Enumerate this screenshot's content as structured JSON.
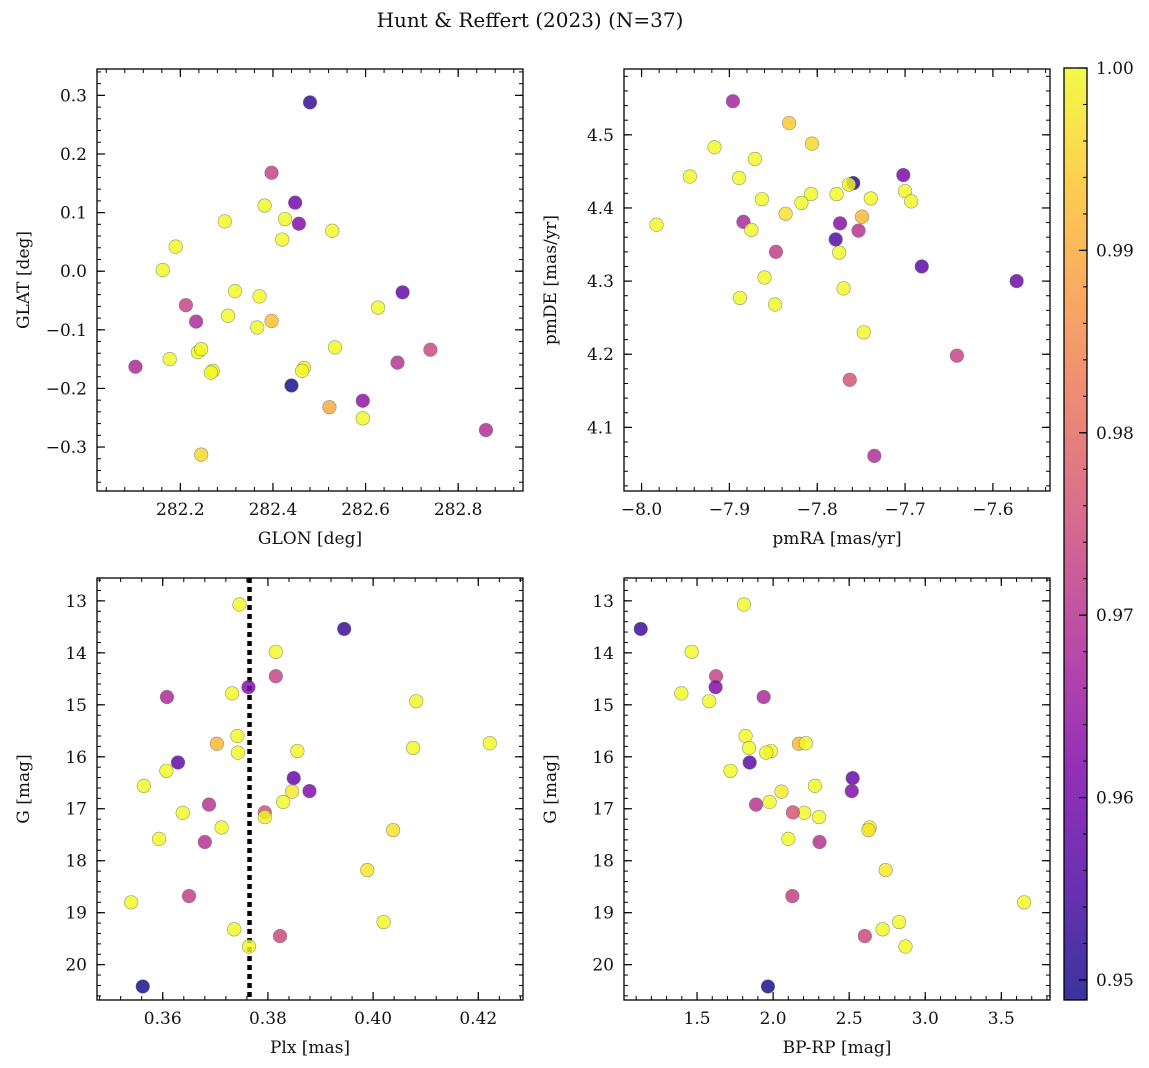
{
  "figure_title": "Hunt & Reffert (2023) (N=37)",
  "colorbar": {
    "min": 0.9489,
    "max": 1.0,
    "colormap": "plasma",
    "ticks": [
      0.95,
      0.96,
      0.97,
      0.98,
      0.99,
      1.0
    ],
    "tick_labels": [
      "0.95",
      "0.96",
      "0.97",
      "0.98",
      "0.99",
      "1.00"
    ]
  },
  "chart_data": [
    {
      "type": "scatter",
      "xlabel": "GLON [deg]",
      "ylabel": "GLAT [deg]",
      "xlim": [
        282.02,
        282.94
      ],
      "ylim": [
        -0.375,
        0.345
      ],
      "y_inverted": false,
      "xticks": [
        282.2,
        282.4,
        282.6,
        282.8
      ],
      "xtick_labels": [
        "282.2",
        "282.4",
        "282.6",
        "282.8"
      ],
      "yticks": [
        0.3,
        0.2,
        0.1,
        0.0,
        -0.1,
        -0.2,
        -0.3
      ],
      "ytick_labels": [
        "0.3",
        "0.2",
        "0.1",
        "0.0",
        "−0.1",
        "−0.2",
        "−0.3"
      ],
      "points": [
        {
          "x": 282.48,
          "y": 0.288,
          "c": 0.952
        },
        {
          "x": 282.397,
          "y": 0.168,
          "c": 0.973
        },
        {
          "x": 282.448,
          "y": 0.117,
          "c": 0.96
        },
        {
          "x": 282.382,
          "y": 0.112,
          "c": 1.0
        },
        {
          "x": 282.296,
          "y": 0.085,
          "c": 1.0
        },
        {
          "x": 282.426,
          "y": 0.089,
          "c": 1.0
        },
        {
          "x": 282.456,
          "y": 0.081,
          "c": 0.962
        },
        {
          "x": 282.528,
          "y": 0.069,
          "c": 1.0
        },
        {
          "x": 282.42,
          "y": 0.054,
          "c": 1.0
        },
        {
          "x": 282.19,
          "y": 0.042,
          "c": 1.0
        },
        {
          "x": 282.162,
          "y": 0.002,
          "c": 1.0
        },
        {
          "x": 282.318,
          "y": -0.034,
          "c": 1.0
        },
        {
          "x": 282.371,
          "y": -0.043,
          "c": 1.0
        },
        {
          "x": 282.68,
          "y": -0.036,
          "c": 0.958
        },
        {
          "x": 282.212,
          "y": -0.058,
          "c": 0.973
        },
        {
          "x": 282.627,
          "y": -0.062,
          "c": 1.0
        },
        {
          "x": 282.303,
          "y": -0.076,
          "c": 1.0
        },
        {
          "x": 282.397,
          "y": -0.085,
          "c": 0.993
        },
        {
          "x": 282.234,
          "y": -0.086,
          "c": 0.968
        },
        {
          "x": 282.366,
          "y": -0.096,
          "c": 1.0
        },
        {
          "x": 282.534,
          "y": -0.13,
          "c": 1.0
        },
        {
          "x": 282.238,
          "y": -0.138,
          "c": 1.0
        },
        {
          "x": 282.245,
          "y": -0.133,
          "c": 1.0
        },
        {
          "x": 282.74,
          "y": -0.134,
          "c": 0.974
        },
        {
          "x": 282.177,
          "y": -0.15,
          "c": 1.0
        },
        {
          "x": 282.669,
          "y": -0.156,
          "c": 0.97
        },
        {
          "x": 282.103,
          "y": -0.163,
          "c": 0.968
        },
        {
          "x": 282.467,
          "y": -0.165,
          "c": 1.0
        },
        {
          "x": 282.463,
          "y": -0.17,
          "c": 1.0
        },
        {
          "x": 282.27,
          "y": -0.17,
          "c": 1.0
        },
        {
          "x": 282.266,
          "y": -0.173,
          "c": 1.0
        },
        {
          "x": 282.44,
          "y": -0.195,
          "c": 0.9492
        },
        {
          "x": 282.594,
          "y": -0.221,
          "c": 0.964
        },
        {
          "x": 282.522,
          "y": -0.232,
          "c": 0.99
        },
        {
          "x": 282.594,
          "y": -0.251,
          "c": 1.0
        },
        {
          "x": 282.86,
          "y": -0.271,
          "c": 0.969
        },
        {
          "x": 282.245,
          "y": -0.313,
          "c": 0.996
        }
      ]
    },
    {
      "type": "scatter",
      "xlabel": "pmRA [mas/yr]",
      "ylabel": "pmDE [mas/yr]",
      "xlim": [
        -8.02,
        -7.535
      ],
      "ylim": [
        4.013,
        4.59
      ],
      "y_inverted": false,
      "xticks": [
        -8.0,
        -7.9,
        -7.8,
        -7.7,
        -7.6
      ],
      "xtick_labels": [
        "−8.0",
        "−7.9",
        "−7.8",
        "−7.7",
        "−7.6"
      ],
      "yticks": [
        4.1,
        4.2,
        4.3,
        4.4,
        4.5
      ],
      "ytick_labels": [
        "4.1",
        "4.2",
        "4.3",
        "4.4",
        "4.5"
      ],
      "points": [
        {
          "x": -7.896,
          "y": 4.546,
          "c": 0.967
        },
        {
          "x": -7.832,
          "y": 4.516,
          "c": 0.994
        },
        {
          "x": -7.806,
          "y": 4.488,
          "c": 0.996
        },
        {
          "x": -7.917,
          "y": 4.483,
          "c": 1.0
        },
        {
          "x": -7.871,
          "y": 4.467,
          "c": 1.0
        },
        {
          "x": -7.945,
          "y": 4.443,
          "c": 1.0
        },
        {
          "x": -7.889,
          "y": 4.441,
          "c": 1.0
        },
        {
          "x": -7.702,
          "y": 4.445,
          "c": 0.961
        },
        {
          "x": -7.759,
          "y": 4.434,
          "c": 0.951
        },
        {
          "x": -7.764,
          "y": 4.432,
          "c": 1.0
        },
        {
          "x": -7.7,
          "y": 4.423,
          "c": 1.0
        },
        {
          "x": -7.807,
          "y": 4.419,
          "c": 1.0
        },
        {
          "x": -7.778,
          "y": 4.419,
          "c": 1.0
        },
        {
          "x": -7.739,
          "y": 4.413,
          "c": 1.0
        },
        {
          "x": -7.863,
          "y": 4.412,
          "c": 1.0
        },
        {
          "x": -7.693,
          "y": 4.409,
          "c": 1.0
        },
        {
          "x": -7.818,
          "y": 4.407,
          "c": 1.0
        },
        {
          "x": -7.836,
          "y": 4.392,
          "c": 0.997
        },
        {
          "x": -7.749,
          "y": 4.388,
          "c": 0.992
        },
        {
          "x": -7.884,
          "y": 4.381,
          "c": 0.968
        },
        {
          "x": -7.774,
          "y": 4.379,
          "c": 0.963
        },
        {
          "x": -7.983,
          "y": 4.377,
          "c": 1.0
        },
        {
          "x": -7.875,
          "y": 4.37,
          "c": 1.0
        },
        {
          "x": -7.753,
          "y": 4.369,
          "c": 0.97
        },
        {
          "x": -7.779,
          "y": 4.357,
          "c": 0.956
        },
        {
          "x": -7.847,
          "y": 4.34,
          "c": 0.972
        },
        {
          "x": -7.775,
          "y": 4.339,
          "c": 1.0
        },
        {
          "x": -7.681,
          "y": 4.32,
          "c": 0.957
        },
        {
          "x": -7.86,
          "y": 4.305,
          "c": 1.0
        },
        {
          "x": -7.573,
          "y": 4.3,
          "c": 0.959
        },
        {
          "x": -7.77,
          "y": 4.29,
          "c": 1.0
        },
        {
          "x": -7.888,
          "y": 4.277,
          "c": 1.0
        },
        {
          "x": -7.848,
          "y": 4.268,
          "c": 1.0
        },
        {
          "x": -7.747,
          "y": 4.23,
          "c": 1.0
        },
        {
          "x": -7.641,
          "y": 4.198,
          "c": 0.973
        },
        {
          "x": -7.763,
          "y": 4.165,
          "c": 0.976
        },
        {
          "x": -7.735,
          "y": 4.061,
          "c": 0.969
        }
      ]
    },
    {
      "type": "scatter",
      "xlabel": "Plx [mas]",
      "ylabel": "G [mag]",
      "xlim": [
        0.3475,
        0.4285
      ],
      "ylim": [
        20.68,
        12.56
      ],
      "y_inverted": true,
      "vline": {
        "x": 0.3765,
        "style": "dotted",
        "color": "#000000"
      },
      "xticks": [
        0.36,
        0.38,
        0.4,
        0.42
      ],
      "xtick_labels": [
        "0.36",
        "0.38",
        "0.40",
        "0.42"
      ],
      "yticks": [
        13,
        14,
        15,
        16,
        17,
        18,
        19,
        20
      ],
      "ytick_labels": [
        "13",
        "14",
        "15",
        "16",
        "17",
        "18",
        "19",
        "20"
      ],
      "points": [
        {
          "x": 0.3746,
          "y": 13.07,
          "c": 1.0
        },
        {
          "x": 0.3945,
          "y": 13.54,
          "c": 0.953
        },
        {
          "x": 0.3815,
          "y": 13.98,
          "c": 1.0
        },
        {
          "x": 0.3815,
          "y": 14.45,
          "c": 0.973
        },
        {
          "x": 0.3763,
          "y": 14.66,
          "c": 0.962
        },
        {
          "x": 0.3732,
          "y": 14.78,
          "c": 1.0
        },
        {
          "x": 0.3608,
          "y": 14.85,
          "c": 0.968
        },
        {
          "x": 0.4082,
          "y": 14.93,
          "c": 1.0
        },
        {
          "x": 0.3742,
          "y": 15.6,
          "c": 1.0
        },
        {
          "x": 0.3703,
          "y": 15.75,
          "c": 0.992
        },
        {
          "x": 0.4222,
          "y": 15.74,
          "c": 1.0
        },
        {
          "x": 0.4076,
          "y": 15.83,
          "c": 1.0
        },
        {
          "x": 0.3856,
          "y": 15.89,
          "c": 1.0
        },
        {
          "x": 0.3743,
          "y": 15.92,
          "c": 1.0
        },
        {
          "x": 0.3629,
          "y": 16.11,
          "c": 0.957
        },
        {
          "x": 0.3607,
          "y": 16.27,
          "c": 1.0
        },
        {
          "x": 0.3849,
          "y": 16.41,
          "c": 0.958
        },
        {
          "x": 0.3564,
          "y": 16.56,
          "c": 1.0
        },
        {
          "x": 0.3846,
          "y": 16.67,
          "c": 0.998
        },
        {
          "x": 0.3879,
          "y": 16.66,
          "c": 0.962
        },
        {
          "x": 0.3829,
          "y": 16.87,
          "c": 1.0
        },
        {
          "x": 0.3688,
          "y": 16.92,
          "c": 0.97
        },
        {
          "x": 0.3638,
          "y": 17.08,
          "c": 1.0
        },
        {
          "x": 0.3794,
          "y": 17.07,
          "c": 0.976
        },
        {
          "x": 0.3794,
          "y": 17.16,
          "c": 1.0
        },
        {
          "x": 0.3712,
          "y": 17.36,
          "c": 1.0
        },
        {
          "x": 0.4038,
          "y": 17.41,
          "c": 0.997
        },
        {
          "x": 0.3593,
          "y": 17.58,
          "c": 1.0
        },
        {
          "x": 0.368,
          "y": 17.64,
          "c": 0.97
        },
        {
          "x": 0.3989,
          "y": 18.18,
          "c": 0.998
        },
        {
          "x": 0.365,
          "y": 18.68,
          "c": 0.972
        },
        {
          "x": 0.354,
          "y": 18.8,
          "c": 1.0
        },
        {
          "x": 0.402,
          "y": 19.18,
          "c": 1.0
        },
        {
          "x": 0.3736,
          "y": 19.32,
          "c": 1.0
        },
        {
          "x": 0.3823,
          "y": 19.45,
          "c": 0.974
        },
        {
          "x": 0.3764,
          "y": 19.65,
          "c": 1.0
        },
        {
          "x": 0.3562,
          "y": 20.42,
          "c": 0.9492
        }
      ]
    },
    {
      "type": "scatter",
      "xlabel": "BP-RP [mag]",
      "ylabel": "G [mag]",
      "xlim": [
        1.02,
        3.82
      ],
      "ylim": [
        20.68,
        12.56
      ],
      "y_inverted": true,
      "xticks": [
        1.5,
        2.0,
        2.5,
        3.0,
        3.5
      ],
      "xtick_labels": [
        "1.5",
        "2.0",
        "2.5",
        "3.0",
        "3.5"
      ],
      "yticks": [
        13,
        14,
        15,
        16,
        17,
        18,
        19,
        20
      ],
      "ytick_labels": [
        "13",
        "14",
        "15",
        "16",
        "17",
        "18",
        "19",
        "20"
      ],
      "points": [
        {
          "x": 1.808,
          "y": 13.07,
          "c": 1.0
        },
        {
          "x": 1.13,
          "y": 13.54,
          "c": 0.953
        },
        {
          "x": 1.465,
          "y": 13.98,
          "c": 1.0
        },
        {
          "x": 1.625,
          "y": 14.45,
          "c": 0.973
        },
        {
          "x": 1.622,
          "y": 14.66,
          "c": 0.962
        },
        {
          "x": 1.397,
          "y": 14.78,
          "c": 1.0
        },
        {
          "x": 1.938,
          "y": 14.85,
          "c": 0.968
        },
        {
          "x": 1.58,
          "y": 14.93,
          "c": 1.0
        },
        {
          "x": 1.819,
          "y": 15.6,
          "c": 1.0
        },
        {
          "x": 2.17,
          "y": 15.75,
          "c": 0.992
        },
        {
          "x": 2.215,
          "y": 15.74,
          "c": 1.0
        },
        {
          "x": 1.842,
          "y": 15.83,
          "c": 1.0
        },
        {
          "x": 1.985,
          "y": 15.89,
          "c": 1.0
        },
        {
          "x": 1.955,
          "y": 15.92,
          "c": 1.0
        },
        {
          "x": 1.846,
          "y": 16.11,
          "c": 0.957
        },
        {
          "x": 1.72,
          "y": 16.27,
          "c": 1.0
        },
        {
          "x": 2.523,
          "y": 16.41,
          "c": 0.958
        },
        {
          "x": 2.275,
          "y": 16.56,
          "c": 1.0
        },
        {
          "x": 2.055,
          "y": 16.67,
          "c": 0.998
        },
        {
          "x": 2.517,
          "y": 16.66,
          "c": 0.962
        },
        {
          "x": 1.977,
          "y": 16.87,
          "c": 1.0
        },
        {
          "x": 1.888,
          "y": 16.92,
          "c": 0.97
        },
        {
          "x": 2.205,
          "y": 17.08,
          "c": 1.0
        },
        {
          "x": 2.13,
          "y": 17.07,
          "c": 0.976
        },
        {
          "x": 2.302,
          "y": 17.16,
          "c": 1.0
        },
        {
          "x": 2.635,
          "y": 17.36,
          "c": 1.0
        },
        {
          "x": 2.627,
          "y": 17.41,
          "c": 0.997
        },
        {
          "x": 2.1,
          "y": 17.58,
          "c": 1.0
        },
        {
          "x": 2.305,
          "y": 17.64,
          "c": 0.97
        },
        {
          "x": 2.74,
          "y": 18.18,
          "c": 0.998
        },
        {
          "x": 2.127,
          "y": 18.68,
          "c": 0.972
        },
        {
          "x": 3.65,
          "y": 18.8,
          "c": 1.0
        },
        {
          "x": 2.828,
          "y": 19.18,
          "c": 1.0
        },
        {
          "x": 2.72,
          "y": 19.32,
          "c": 1.0
        },
        {
          "x": 2.603,
          "y": 19.45,
          "c": 0.974
        },
        {
          "x": 2.87,
          "y": 19.65,
          "c": 1.0
        },
        {
          "x": 1.966,
          "y": 20.42,
          "c": 0.9492
        }
      ]
    }
  ]
}
